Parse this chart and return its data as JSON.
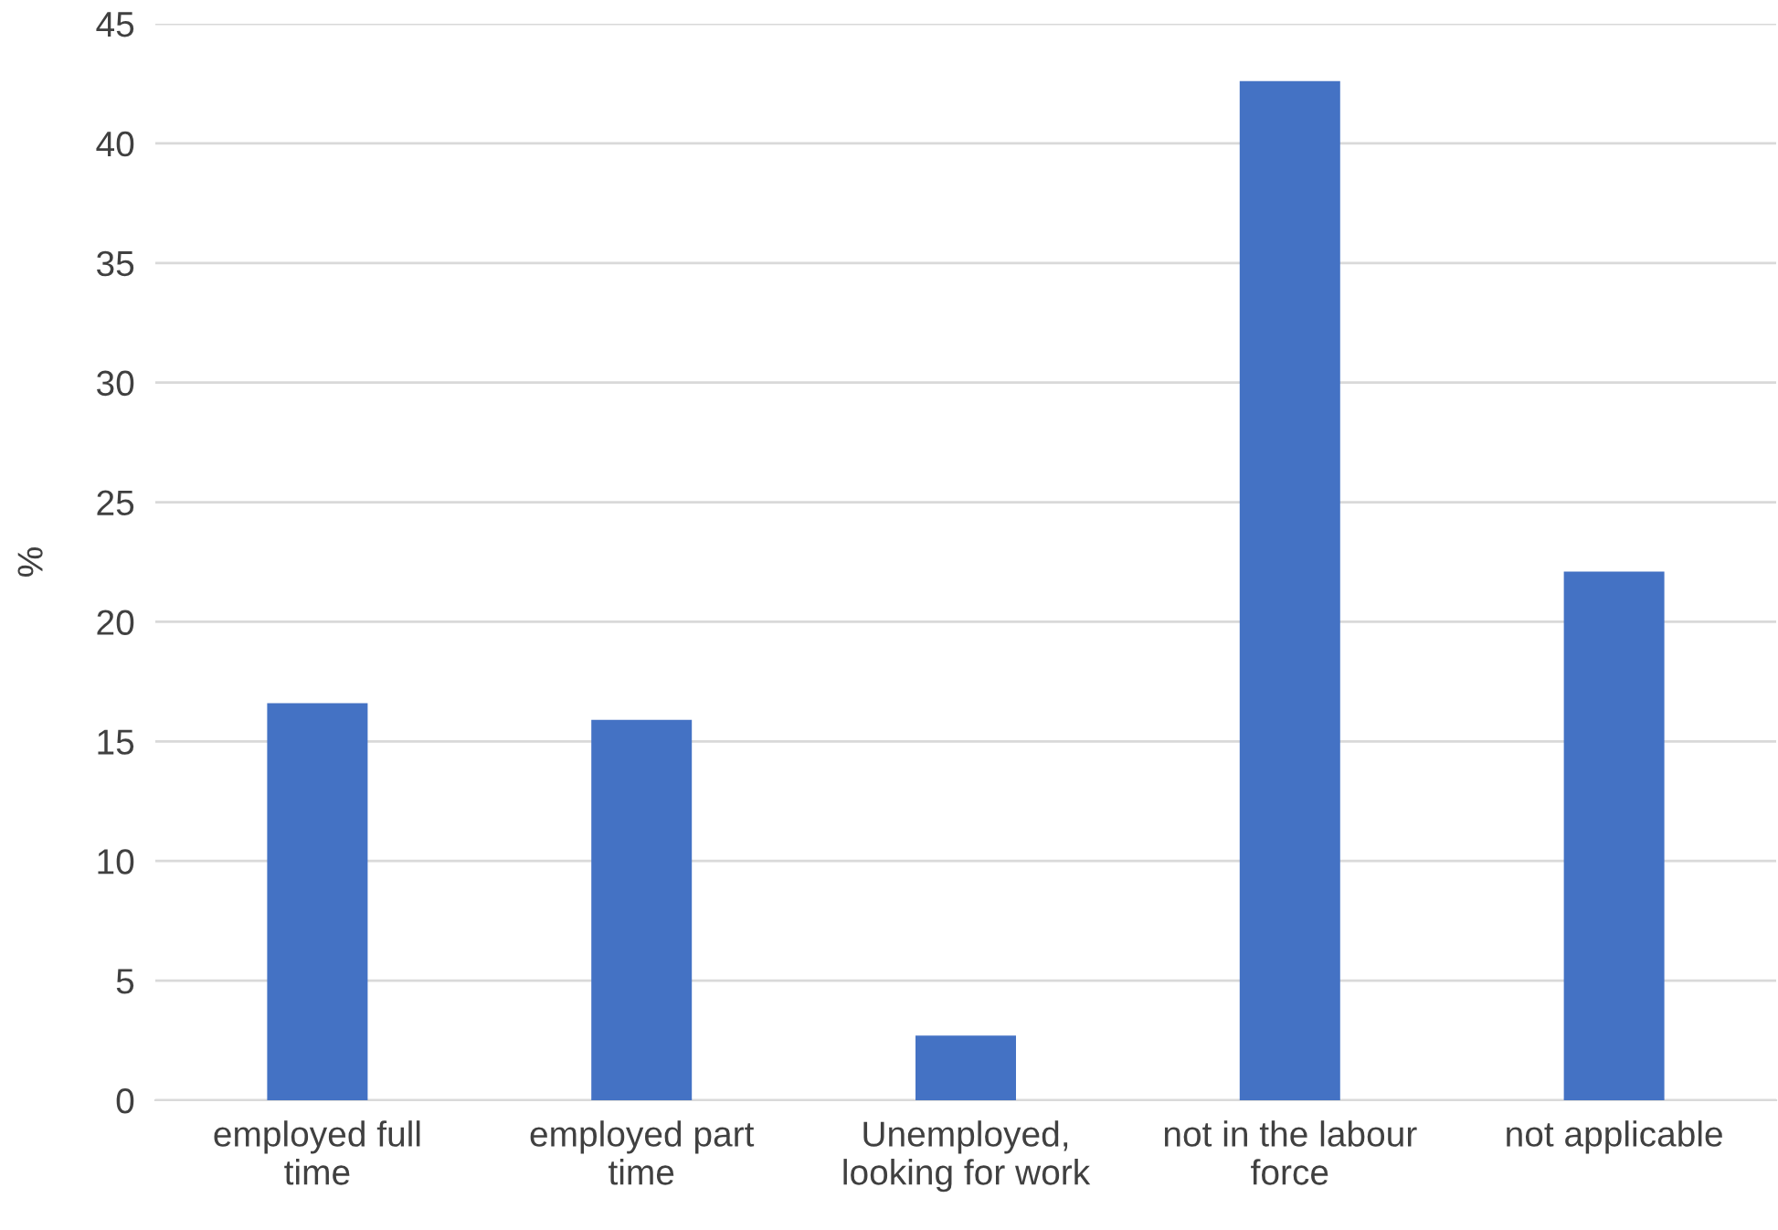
{
  "chart_data": {
    "type": "bar",
    "ylabel": "%",
    "categories": [
      "employed full\ntime",
      "employed part\ntime",
      "Unemployed,\nlooking for work",
      "not in the labour\nforce",
      "not applicable"
    ],
    "values": [
      16.6,
      15.9,
      2.7,
      42.6,
      22.1
    ],
    "color": "#4472c4",
    "ylim": [
      0,
      45
    ],
    "yticks": [
      0,
      5,
      10,
      15,
      20,
      25,
      30,
      35,
      40,
      45
    ],
    "grid": "y",
    "legend": false
  }
}
